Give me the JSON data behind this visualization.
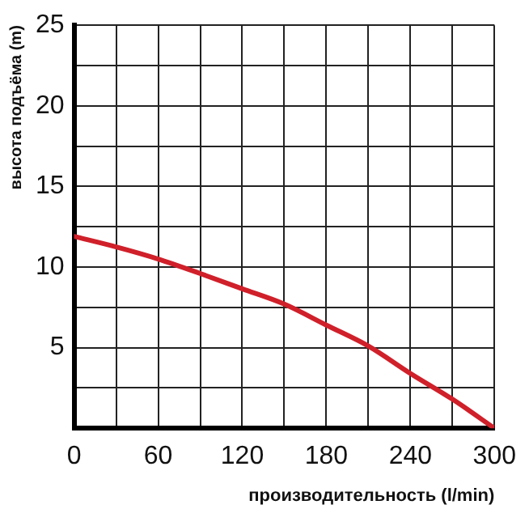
{
  "chart_data": {
    "type": "line",
    "xlabel": "производительность (l/min)",
    "ylabel": "высота подъёма (m)",
    "x": [
      0,
      30,
      60,
      90,
      120,
      150,
      180,
      210,
      240,
      270,
      300
    ],
    "series": [
      {
        "color": "#d0202a",
        "values": [
          11.9,
          11.25,
          10.5,
          9.6,
          8.65,
          7.7,
          6.4,
          5.1,
          3.4,
          1.8,
          0
        ]
      }
    ],
    "xlim": [
      0,
      300
    ],
    "xticks": [
      0,
      {
        "value": 30,
        "label": null
      },
      60,
      {
        "value": 90,
        "label": null
      },
      120,
      {
        "value": 150,
        "label": null
      },
      180,
      {
        "value": 210,
        "label": null
      },
      240,
      {
        "value": 270,
        "label": null
      },
      300
    ],
    "ylim": [
      0,
      25
    ],
    "yticks": [
      {
        "value": 0,
        "label": null
      },
      {
        "value": 2.5,
        "label": null
      },
      5,
      {
        "value": 7.5,
        "label": null
      },
      10,
      {
        "value": 12.5,
        "label": null
      },
      15,
      {
        "value": 17.5,
        "label": null
      },
      20,
      {
        "value": 22.5,
        "label": null
      },
      25
    ],
    "grid": true,
    "legend": false,
    "marker": "none",
    "line_style": "solid"
  }
}
